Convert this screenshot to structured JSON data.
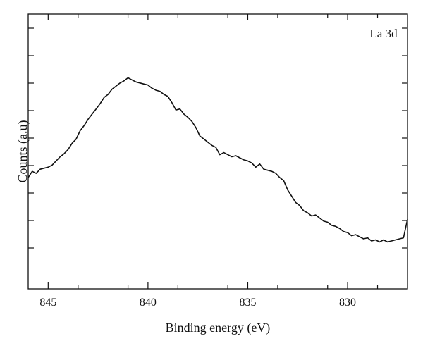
{
  "chart_data": {
    "type": "line",
    "xlabel": "Binding energy (eV)",
    "ylabel": "Counts (a.u)",
    "annotation": "La 3d",
    "xlim": [
      846,
      827
    ],
    "ylim": [
      0,
      100
    ],
    "x_ticks": [
      845,
      840,
      835,
      830
    ],
    "y_ticks_count": 9,
    "x_reversed": true,
    "grid": false,
    "series": [
      {
        "color": "#111111",
        "x": [
          846.0,
          845.8,
          845.6,
          845.4,
          845.2,
          845.0,
          844.8,
          844.6,
          844.4,
          844.2,
          844.0,
          843.8,
          843.6,
          843.4,
          843.2,
          843.0,
          842.8,
          842.6,
          842.4,
          842.2,
          842.0,
          841.8,
          841.6,
          841.4,
          841.2,
          841.0,
          840.8,
          840.6,
          840.4,
          840.2,
          840.0,
          839.8,
          839.6,
          839.4,
          839.2,
          839.0,
          838.8,
          838.6,
          838.4,
          838.2,
          838.0,
          837.8,
          837.6,
          837.4,
          837.2,
          837.0,
          836.8,
          836.6,
          836.4,
          836.2,
          836.0,
          835.8,
          835.6,
          835.4,
          835.2,
          835.0,
          834.8,
          834.6,
          834.4,
          834.2,
          834.0,
          833.8,
          833.6,
          833.4,
          833.2,
          833.0,
          832.8,
          832.6,
          832.4,
          832.2,
          832.0,
          831.8,
          831.6,
          831.4,
          831.2,
          831.0,
          830.8,
          830.6,
          830.4,
          830.2,
          830.0,
          829.8,
          829.6,
          829.4,
          829.2,
          829.0,
          828.8,
          828.6,
          828.4,
          828.2,
          828.0,
          827.8,
          827.6,
          827.4,
          827.2,
          827.0
        ],
        "y": [
          40.0,
          43.0,
          42.0,
          44.0,
          44.5,
          45.0,
          46.0,
          48.0,
          50.0,
          51.5,
          53.5,
          56.5,
          58.5,
          62.5,
          65.0,
          68.0,
          70.5,
          73.0,
          75.5,
          78.5,
          80.0,
          82.5,
          84.0,
          85.5,
          86.5,
          88.0,
          87.0,
          86.0,
          85.5,
          85.0,
          84.5,
          83.0,
          82.0,
          81.5,
          80.0,
          79.0,
          76.0,
          72.5,
          73.0,
          70.5,
          69.0,
          67.0,
          64.0,
          60.0,
          58.5,
          57.0,
          55.5,
          54.5,
          51.0,
          52.0,
          51.0,
          50.0,
          50.5,
          49.5,
          48.5,
          48.0,
          47.0,
          45.0,
          46.5,
          44.0,
          43.5,
          43.0,
          42.0,
          40.0,
          38.5,
          34.0,
          31.0,
          28.0,
          26.5,
          24.0,
          23.0,
          21.5,
          22.0,
          20.5,
          19.0,
          18.5,
          17.0,
          16.5,
          15.5,
          14.0,
          13.5,
          12.0,
          12.5,
          11.5,
          10.5,
          11.0,
          9.5,
          10.0,
          9.0,
          10.0,
          9.0,
          9.5,
          10.0,
          10.5,
          11.0,
          20.0
        ]
      }
    ]
  }
}
